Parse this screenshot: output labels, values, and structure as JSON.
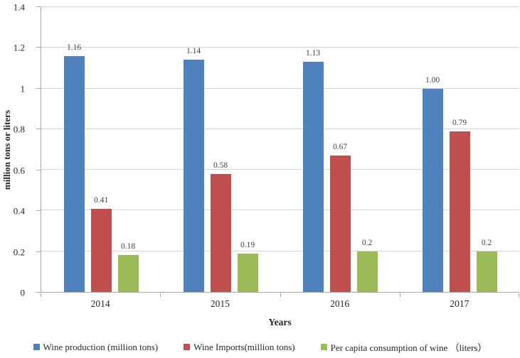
{
  "chart_data": {
    "type": "bar",
    "title": "",
    "categories": [
      "2014",
      "2015",
      "2016",
      "2017"
    ],
    "series": [
      {
        "name": "Wine production (million tons)",
        "color": "#4F81BD",
        "values": [
          1.16,
          1.14,
          1.13,
          1.0
        ],
        "labels": [
          "1.16",
          "1.14",
          "1.13",
          "1.00"
        ]
      },
      {
        "name": "Wine Imports(million tons)",
        "color": "#C0504D",
        "values": [
          0.41,
          0.58,
          0.67,
          0.79
        ],
        "labels": [
          "0.41",
          "0.58",
          "0.67",
          "0.79"
        ]
      },
      {
        "name": "Per capita consumption of wine （liters）",
        "color": "#9BBB59",
        "values": [
          0.18,
          0.19,
          0.2,
          0.2
        ],
        "labels": [
          "0.18",
          "0.19",
          "0.2",
          "0.2"
        ]
      }
    ],
    "xlabel": "Years",
    "ylabel": "million tons or liters",
    "ylim": [
      0,
      1.4
    ],
    "yticks": [
      "0",
      "0.2",
      "0.4",
      "0.6",
      "0.8",
      "1",
      "1.2",
      "1.4"
    ],
    "grid": true,
    "legend_position": "bottom",
    "axis_color": "#a6a6a6",
    "gridline_color": "#d6d6d6"
  }
}
